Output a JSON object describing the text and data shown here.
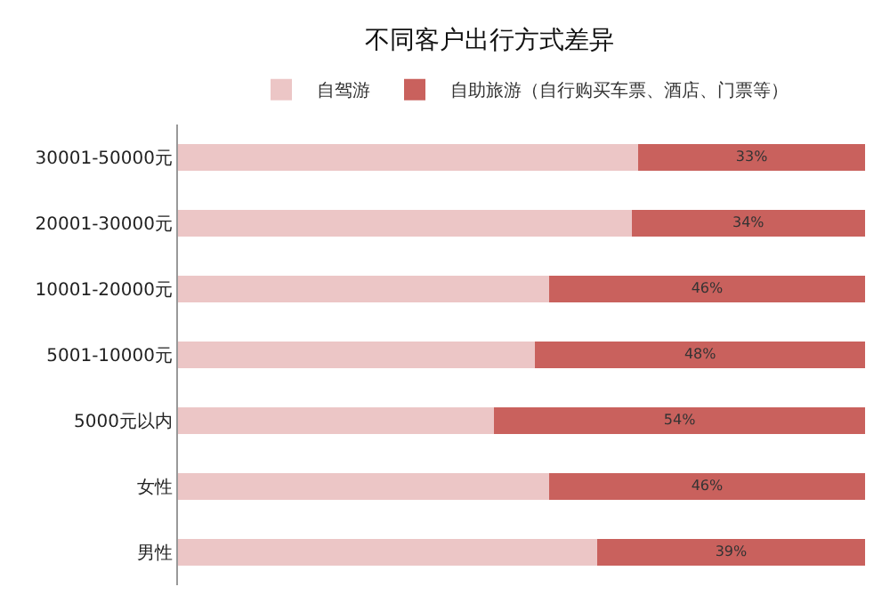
{
  "chart_data": {
    "type": "bar",
    "title": "不同客户出行方式差异",
    "orientation": "horizontal",
    "stacked": true,
    "legend": "top",
    "xlim": [
      0,
      100
    ],
    "tick_labels": "y",
    "categories": [
      "30001-50000元",
      "20001-30000元",
      "10001-20000元",
      "5001-10000元",
      "5000元以内",
      "女性",
      "男性"
    ],
    "series": [
      {
        "name": "自驾游",
        "color": "#ecc6c6",
        "values": [
          67,
          66,
          54,
          52,
          46,
          54,
          61
        ]
      },
      {
        "name": "自助旅游（自行购买车票、酒店、门票等）",
        "color": "#c9615d",
        "values": [
          33,
          34,
          46,
          48,
          54,
          46,
          39
        ],
        "value_labels": [
          "33%",
          "34%",
          "46%",
          "48%",
          "54%",
          "46%",
          "39%"
        ]
      }
    ]
  }
}
